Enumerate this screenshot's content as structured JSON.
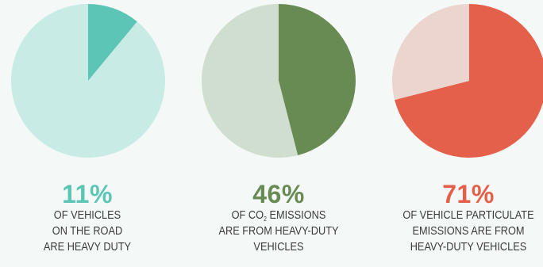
{
  "chart_data": [
    {
      "type": "pie",
      "title": "",
      "value": 11,
      "unit": "%",
      "values": [
        11,
        89
      ],
      "colors": [
        "#5cc5b5",
        "#c8ebe5"
      ],
      "label": "11%",
      "caption": [
        "OF VEHICLES",
        "ON THE ROAD",
        "ARE HEAVY DUTY"
      ]
    },
    {
      "type": "pie",
      "title": "",
      "value": 46,
      "unit": "%",
      "values": [
        46,
        54
      ],
      "colors": [
        "#678b52",
        "#cfdece"
      ],
      "label": "46%",
      "caption": [
        "OF CO",
        "2",
        " EMISSIONS",
        "ARE FROM HEAVY-DUTY",
        "VEHICLES"
      ]
    },
    {
      "type": "pie",
      "title": "",
      "value": 71,
      "unit": "%",
      "values": [
        71,
        29
      ],
      "colors": [
        "#e5604a",
        "#ecd5ce"
      ],
      "label": "71%",
      "caption": [
        "OF VEHICLE PARTICULATE",
        "EMISSIONS ARE FROM",
        "HEAVY-DUTY VEHICLES"
      ]
    }
  ],
  "label_colors": [
    "#5cc5b5",
    "#678b52",
    "#e5604a"
  ]
}
